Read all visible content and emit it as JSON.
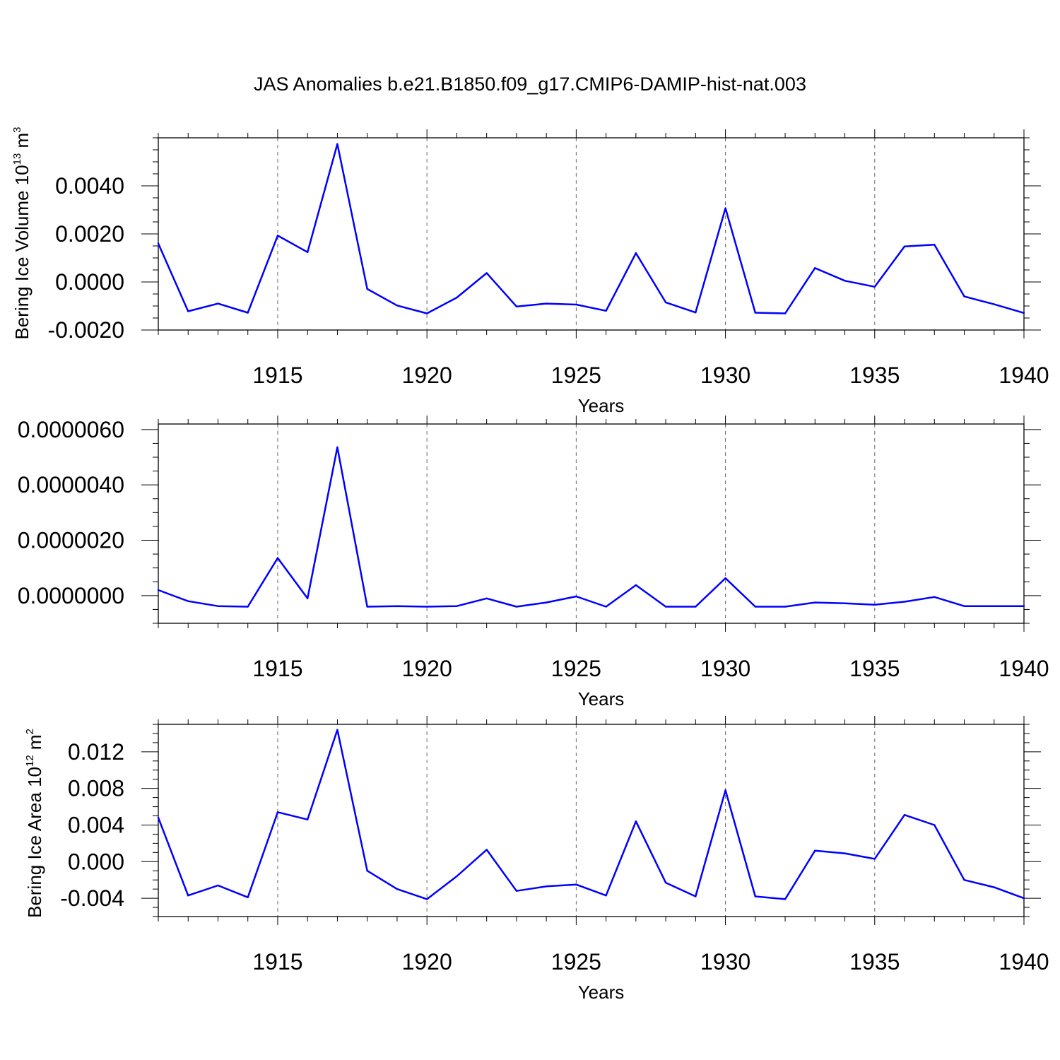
{
  "title": "JAS Anomalies b.e21.B1850.f09_g17.CMIP6-DAMIP-hist-nat.003",
  "chart_data": [
    {
      "type": "line",
      "xlabel": "Years",
      "ylabel": "Bering Ice Volume 10",
      "ylabel_exponent": "13",
      "ylabel_unit": " m",
      "ylabel_unit_exponent": "3",
      "xlim": [
        1911,
        1940
      ],
      "ylim": [
        -0.002,
        0.006
      ],
      "xticks": [
        1915,
        1920,
        1925,
        1930,
        1935,
        1940
      ],
      "xtick_labels": [
        "1915",
        "1920",
        "1925",
        "1930",
        "1935",
        "1940"
      ],
      "yticks": [
        -0.002,
        0.0,
        0.002,
        0.004
      ],
      "ytick_labels": [
        "-0.0020",
        "0.0000",
        "0.0020",
        "0.0040"
      ],
      "grid": "vertical dashed at major x ticks",
      "line_color": "#0000ff",
      "series": [
        {
          "x": [
            1911,
            1912,
            1913,
            1914,
            1915,
            1916,
            1917,
            1918,
            1919,
            1920,
            1921,
            1922,
            1923,
            1924,
            1925,
            1926,
            1927,
            1928,
            1929,
            1930,
            1931,
            1932,
            1933,
            1934,
            1935,
            1936,
            1937,
            1938,
            1939,
            1940
          ],
          "values": [
            0.0016,
            -0.00122,
            -0.0009,
            -0.00128,
            0.00193,
            0.00124,
            0.00574,
            -0.00029,
            -0.00098,
            -0.00131,
            -0.00065,
            0.00037,
            -0.00102,
            -0.0009,
            -0.00094,
            -0.0012,
            0.0012,
            -0.00085,
            -0.00127,
            0.00307,
            -0.00128,
            -0.00131,
            0.00058,
            5e-05,
            -0.0002,
            0.00148,
            0.00155,
            -0.0006,
            -0.00093,
            -0.00129
          ]
        }
      ]
    },
    {
      "type": "line",
      "xlabel": "Years",
      "ylabel": "",
      "xlim": [
        1911,
        1940
      ],
      "ylim": [
        -1e-06,
        6.2e-06
      ],
      "xticks": [
        1915,
        1920,
        1925,
        1930,
        1935,
        1940
      ],
      "xtick_labels": [
        "1915",
        "1920",
        "1925",
        "1930",
        "1935",
        "1940"
      ],
      "yticks": [
        0.0,
        2e-06,
        4e-06,
        6e-06
      ],
      "ytick_labels": [
        "0.0000000",
        "0.0000020",
        "0.0000040",
        "0.0000060"
      ],
      "grid": "vertical dashed at major x ticks",
      "line_color": "#0000ff",
      "series": [
        {
          "x": [
            1911,
            1912,
            1913,
            1914,
            1915,
            1916,
            1917,
            1918,
            1919,
            1920,
            1921,
            1922,
            1923,
            1924,
            1925,
            1926,
            1927,
            1928,
            1929,
            1930,
            1931,
            1932,
            1933,
            1934,
            1935,
            1936,
            1937,
            1938,
            1939,
            1940
          ],
          "values": [
            2e-07,
            -2e-07,
            -3.8e-07,
            -4e-07,
            1.36e-06,
            -1e-07,
            5.36e-06,
            -4e-07,
            -3.8e-07,
            -4e-07,
            -3.8e-07,
            -1e-07,
            -4e-07,
            -2.5e-07,
            -3e-08,
            -4e-07,
            3.8e-07,
            -4e-07,
            -4e-07,
            6.3e-07,
            -4e-07,
            -4e-07,
            -2.5e-07,
            -2.8e-07,
            -3.3e-07,
            -2.2e-07,
            -5e-08,
            -3.8e-07,
            -3.8e-07,
            -3.8e-07
          ]
        }
      ]
    },
    {
      "type": "line",
      "xlabel": "Years",
      "ylabel": "Bering Ice Area 10",
      "ylabel_exponent": "12",
      "ylabel_unit": " m",
      "ylabel_unit_exponent": "2",
      "xlim": [
        1911,
        1940
      ],
      "ylim": [
        -0.006,
        0.015
      ],
      "xticks": [
        1915,
        1920,
        1925,
        1930,
        1935,
        1940
      ],
      "xtick_labels": [
        "1915",
        "1920",
        "1925",
        "1930",
        "1935",
        "1940"
      ],
      "yticks": [
        -0.004,
        0.0,
        0.004,
        0.008,
        0.012
      ],
      "ytick_labels": [
        "-0.004",
        "0.000",
        "0.004",
        "0.008",
        "0.012"
      ],
      "grid": "vertical dashed at major x ticks",
      "line_color": "#0000ff",
      "series": [
        {
          "x": [
            1911,
            1912,
            1913,
            1914,
            1915,
            1916,
            1917,
            1918,
            1919,
            1920,
            1921,
            1922,
            1923,
            1924,
            1925,
            1926,
            1927,
            1928,
            1929,
            1930,
            1931,
            1932,
            1933,
            1934,
            1935,
            1936,
            1937,
            1938,
            1939,
            1940
          ],
          "values": [
            0.0048,
            -0.0037,
            -0.0026,
            -0.0039,
            0.0054,
            0.0046,
            0.0144,
            -0.001,
            -0.003,
            -0.0041,
            -0.0016,
            0.0013,
            -0.0032,
            -0.0027,
            -0.0025,
            -0.0037,
            0.0044,
            -0.0023,
            -0.0038,
            0.0078,
            -0.0038,
            -0.0041,
            0.0012,
            0.0009,
            0.0003,
            0.0051,
            0.004,
            -0.002,
            -0.0028,
            -0.004
          ]
        }
      ]
    }
  ]
}
